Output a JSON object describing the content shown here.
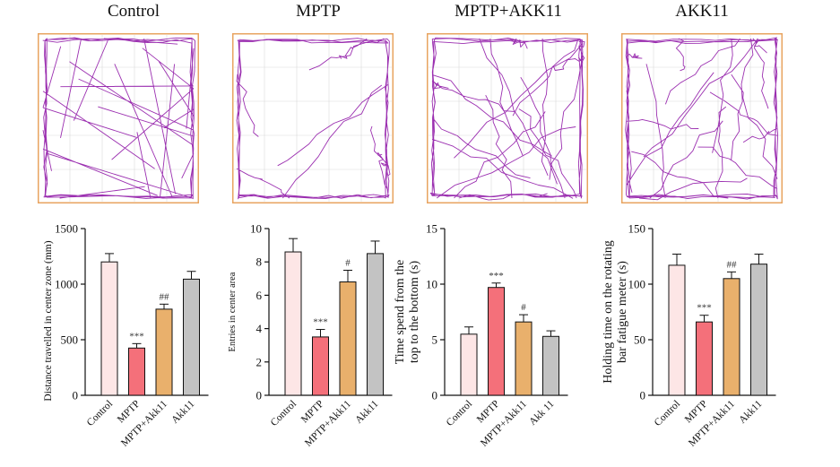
{
  "panels": [
    {
      "title": "Control"
    },
    {
      "title": "MPTP"
    },
    {
      "title": "MPTP+AKK11"
    },
    {
      "title": "AKK11"
    }
  ],
  "colors": {
    "track": "#9b2fb0",
    "arena_border": "#e8a460",
    "grid": "#d9d9d9",
    "bars": [
      "#fde6e6",
      "#f4707a",
      "#e9b06c",
      "#c3c3c3"
    ]
  },
  "chart_data": [
    {
      "type": "bar",
      "categories": [
        "Control",
        "MPTP",
        "MPTP+Akk11",
        "Akk11"
      ],
      "values": [
        1200,
        425,
        775,
        1045
      ],
      "errors": [
        75,
        40,
        45,
        70
      ],
      "significance": [
        "",
        "***",
        "##",
        ""
      ],
      "ylabel": "Distance travelled in center zone (mm)",
      "ylim": [
        0,
        1500
      ],
      "yticks": [
        "0",
        "500",
        "1000",
        "1500"
      ]
    },
    {
      "type": "bar",
      "categories": [
        "Control",
        "MPTP",
        "MPTP+Akk11",
        "Akk11"
      ],
      "values": [
        8.6,
        3.5,
        6.8,
        8.5
      ],
      "errors": [
        0.8,
        0.45,
        0.7,
        0.75
      ],
      "significance": [
        "",
        "***",
        "#",
        ""
      ],
      "ylabel": "Entries in center area",
      "ylim": [
        0,
        10
      ],
      "yticks": [
        "0",
        "2",
        "4",
        "6",
        "8",
        "10"
      ]
    },
    {
      "type": "bar",
      "categories": [
        "Control",
        "MPTP",
        "MPTP+Akk11",
        "Akk 11"
      ],
      "values": [
        5.5,
        9.7,
        6.6,
        5.3
      ],
      "errors": [
        0.65,
        0.4,
        0.65,
        0.5
      ],
      "significance": [
        "",
        "***",
        "#",
        ""
      ],
      "ylabel": "Time spend from the top to the bottom (s)",
      "ylim": [
        0,
        15
      ],
      "yticks": [
        "0",
        "5",
        "10",
        "15"
      ]
    },
    {
      "type": "bar",
      "categories": [
        "Control",
        "MPTP",
        "MPTP+Akk11",
        "Akk11"
      ],
      "values": [
        117,
        66,
        105,
        118
      ],
      "errors": [
        10,
        6,
        6,
        9
      ],
      "significance": [
        "",
        "***",
        "##",
        ""
      ],
      "ylabel": "Holding time on the rotating bar fatigue meter (s)",
      "ylim": [
        0,
        150
      ],
      "yticks": [
        "0",
        "50",
        "100",
        "150"
      ]
    }
  ]
}
